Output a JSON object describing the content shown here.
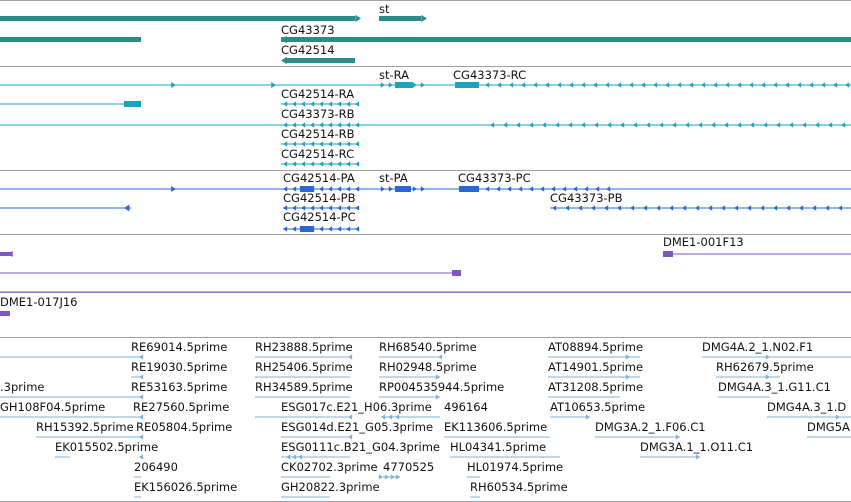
{
  "colors": {
    "gene": "#2e8b8b",
    "transcript": "#1aa3c0",
    "protein": "#2a66d8",
    "clone": "#7e57c2",
    "est": "#7fb2d9",
    "separator": "#9aa0a6"
  },
  "tracks": {
    "gene_labels": [
      "st",
      "CG43373",
      "CG42514"
    ],
    "transcript_labels": [
      "st-RA",
      "CG43373-RC",
      "CG42514-RA",
      "CG43373-RB",
      "CG42514-RB",
      "CG42514-RC"
    ],
    "protein_labels": [
      "CG42514-PA",
      "st-PA",
      "CG43373-PC",
      "CG42514-PB",
      "CG43373-PB",
      "CG42514-PC"
    ],
    "clone_labels": [
      "DME1-001F13",
      "DME1-017J16"
    ],
    "est_labels": [
      "RE69014.5prime",
      "RH23888.5prime",
      "RH68540.5prime",
      "AT08894.5prime",
      "DMG4A.2_1.N02.F1",
      "RE19030.5prime",
      "RH25406.5prime",
      "RH02948.5prime",
      "AT14901.5prime",
      "RH62679.5prime",
      ".3prime",
      "RE53163.5prime",
      "RH34589.5prime",
      "RP004535944.5prime",
      "AT31208.5prime",
      "DMG4A.3_1.G11.C1",
      "GH108F04.5prime",
      "RE27560.5prime",
      "ESG017c.E21_H06.3prime",
      "496164",
      "AT10653.5prime",
      "DMG4A.3_1.D",
      "RH15392.5prime",
      "RE05804.5prime",
      "ESG014d.E21_G05.3prime",
      "EK113606.5prime",
      "DMG3A.2_1.F06.C1",
      "DMG5A",
      "EK015502.5prime",
      "ESG0111c.B21_G04.3prime",
      "HL04341.5prime",
      "DMG3A.1_1.O11.C1",
      "206490",
      "CK02702.3prime",
      "4770525",
      "HL01974.5prime",
      "EK156026.5prime",
      "GH20822.3prime",
      "RH60534.5prime"
    ]
  }
}
